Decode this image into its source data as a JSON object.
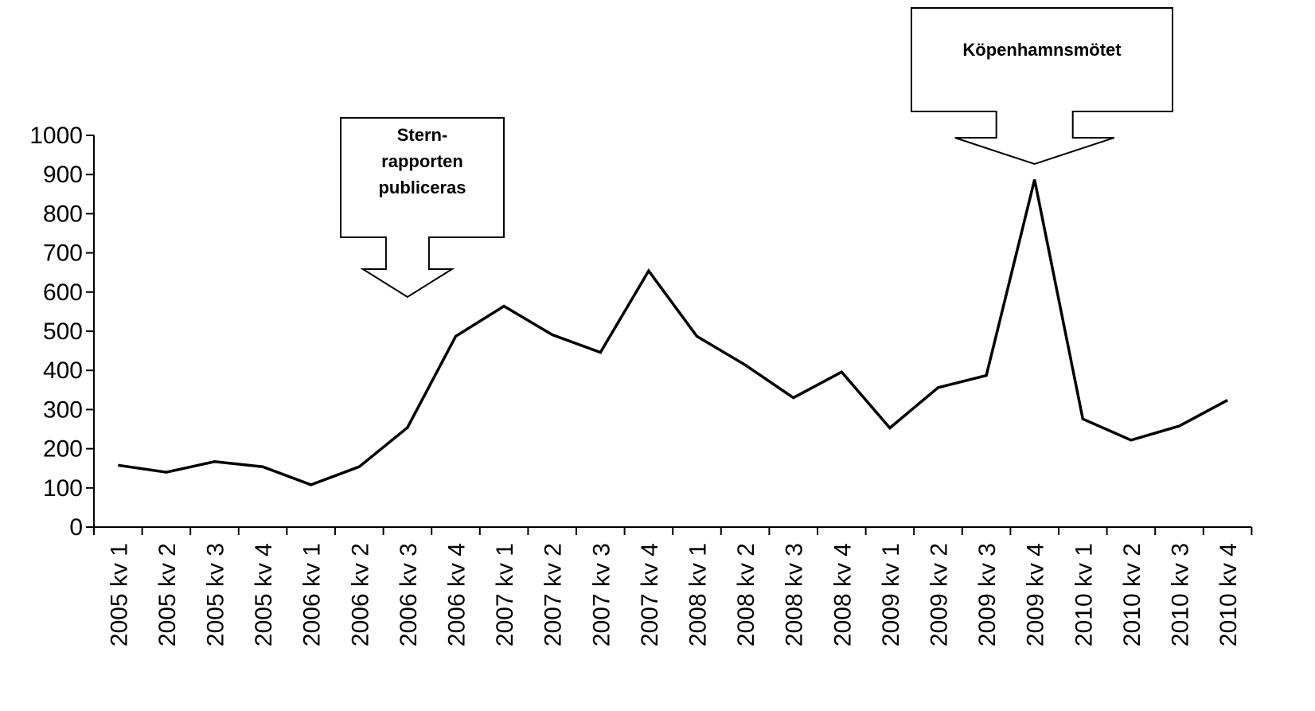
{
  "chart_data": {
    "type": "line",
    "title": "",
    "xlabel": "",
    "ylabel": "",
    "ylim": [
      0,
      1000
    ],
    "yticks": [
      0,
      100,
      200,
      300,
      400,
      500,
      600,
      700,
      800,
      900,
      1000
    ],
    "grid": false,
    "categories": [
      "2005 kv 1",
      "2005 kv 2",
      "2005 kv 3",
      "2005 kv 4",
      "2006 kv 1",
      "2006 kv 2",
      "2006 kv 3",
      "2006 kv 4",
      "2007 kv 1",
      "2007 kv 2",
      "2007 kv 3",
      "2007 kv 4",
      "2008 kv 1",
      "2008 kv 2",
      "2008 kv 3",
      "2008 kv 4",
      "2009 kv 1",
      "2009 kv 2",
      "2009 kv 3",
      "2009 kv 4",
      "2010 kv 1",
      "2010 kv 2",
      "2010 kv 3",
      "2010 kv 4"
    ],
    "series": [
      {
        "values": [
          158,
          140,
          167,
          154,
          108,
          154,
          254,
          487,
          564,
          491,
          446,
          654,
          487,
          414,
          330,
          396,
          253,
          356,
          387,
          887,
          276,
          222,
          258,
          324
        ],
        "color": "#000000"
      }
    ],
    "annotations": [
      {
        "text_lines": [
          "Stern-",
          "rapporten",
          "publiceras"
        ],
        "category": "2006 kv 3"
      },
      {
        "text_lines": [
          "Köpenhamnsmötet"
        ],
        "category": "2009 kv 4"
      }
    ]
  }
}
